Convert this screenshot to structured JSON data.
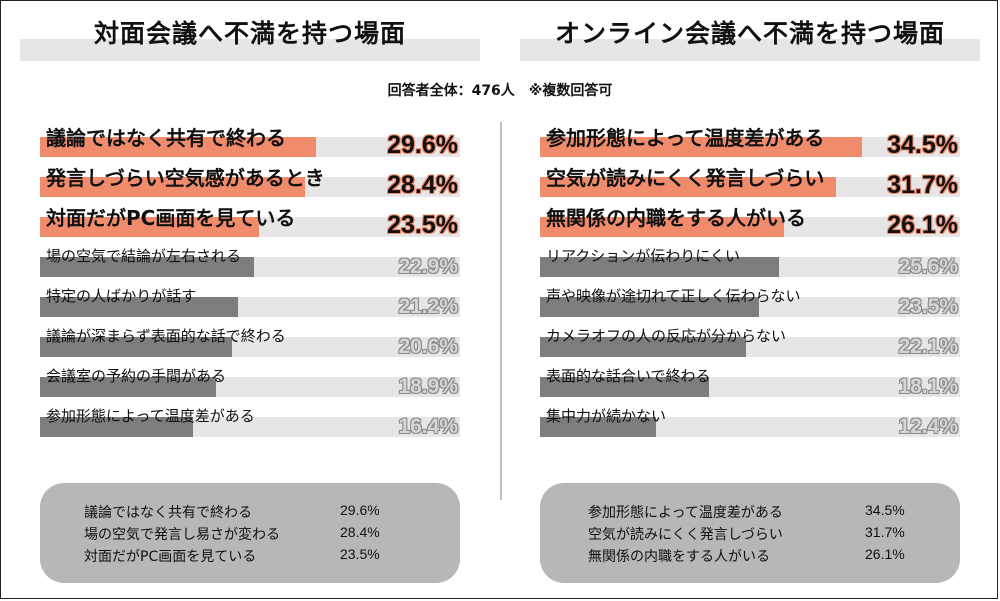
{
  "subtitle": "回答者全体：476人　※複数回答可",
  "chart_data": [
    {
      "type": "bar",
      "orientation": "horizontal",
      "title": "対面会議へ不満を持つ場面",
      "xlim": [
        0,
        45
      ],
      "unit": "%",
      "items": [
        {
          "label": "議論ではなく共有で終わる",
          "value": 29.6,
          "display": "29.6%",
          "highlight": true
        },
        {
          "label": "発言しづらい空気感があるとき",
          "value": 28.4,
          "display": "28.4%",
          "highlight": true
        },
        {
          "label": "対面だがPC画面を見ている",
          "value": 23.5,
          "display": "23.5%",
          "highlight": true
        },
        {
          "label": "場の空気で結論が左右される",
          "value": 22.9,
          "display": "22.9%",
          "highlight": false
        },
        {
          "label": "特定の人ばかりが話す",
          "value": 21.2,
          "display": "21.2%",
          "highlight": false
        },
        {
          "label": "議論が深まらず表面的な話で終わる",
          "value": 20.6,
          "display": "20.6%",
          "highlight": false
        },
        {
          "label": "会議室の予約の手間がある",
          "value": 18.9,
          "display": "18.9%",
          "highlight": false
        },
        {
          "label": "参加形態によって温度差がある",
          "value": 16.4,
          "display": "16.4%",
          "highlight": false
        }
      ],
      "summary": [
        {
          "label": "議論ではなく共有で終わる",
          "value": "29.6%"
        },
        {
          "label": "場の空気で発言し易さが変わる",
          "value": "28.4%"
        },
        {
          "label": "対面だがPC画面を見ている",
          "value": "23.5%"
        }
      ]
    },
    {
      "type": "bar",
      "orientation": "horizontal",
      "title": "オンライン会議へ不満を持つ場面",
      "xlim": [
        0,
        45
      ],
      "unit": "%",
      "items": [
        {
          "label": "参加形態によって温度差がある",
          "value": 34.5,
          "display": "34.5%",
          "highlight": true
        },
        {
          "label": "空気が読みにくく発言しづらい",
          "value": 31.7,
          "display": "31.7%",
          "highlight": true
        },
        {
          "label": "無関係の内職をする人がいる",
          "value": 26.1,
          "display": "26.1%",
          "highlight": true
        },
        {
          "label": "リアクションが伝わりにくい",
          "value": 25.6,
          "display": "25.6%",
          "highlight": false
        },
        {
          "label": "声や映像が途切れて正しく伝わらない",
          "value": 23.5,
          "display": "23.5%",
          "highlight": false
        },
        {
          "label": "カメラオフの人の反応が分からない",
          "value": 22.1,
          "display": "22.1%",
          "highlight": false
        },
        {
          "label": "表面的な話合いで終わる",
          "value": 18.1,
          "display": "18.1%",
          "highlight": false
        },
        {
          "label": "集中力が続かない",
          "value": 12.4,
          "display": "12.4%",
          "highlight": false
        }
      ],
      "summary": [
        {
          "label": "参加形態によって温度差がある",
          "value": "34.5%"
        },
        {
          "label": "空気が読みにくく発言しづらい",
          "value": "31.7%"
        },
        {
          "label": "無関係の内職をする人がいる",
          "value": "26.1%"
        }
      ]
    }
  ],
  "colors": {
    "highlight": "#f08c6c",
    "normal": "#7d7d7d",
    "track": "#e6e6e6",
    "summary_box": "#b7b7b7"
  }
}
